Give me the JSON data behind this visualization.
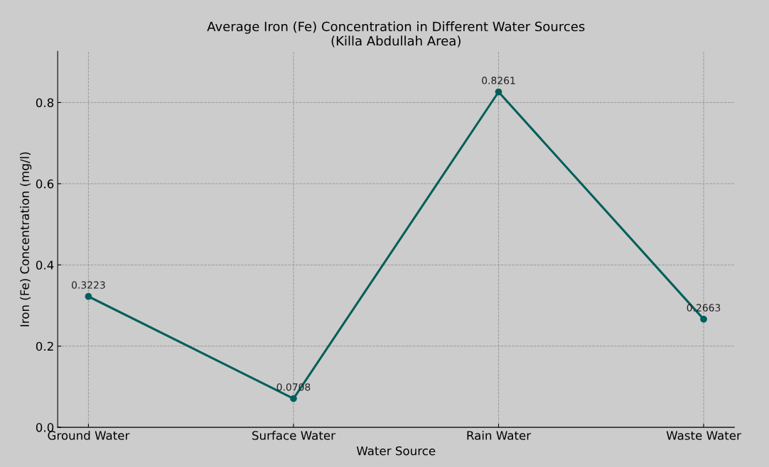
{
  "chart_data": {
    "type": "line",
    "title": "Average Iron (Fe) Concentration in Different Water Sources\n(Killa Abdullah Area)",
    "xlabel": "Water Source",
    "ylabel": "Iron (Fe) Concentration (mg/l)",
    "categories": [
      "Ground Water",
      "Surface Water",
      "Rain Water",
      "Waste Water"
    ],
    "series": [
      {
        "color": "#005f5a",
        "values": [
          0.3223,
          0.0708,
          0.8261,
          0.2663
        ]
      }
    ],
    "ylim": [
      0,
      0.926
    ],
    "yticks": [
      {
        "value": 0,
        "label": "0.0"
      },
      0.2,
      0.4,
      0.6,
      0.8
    ],
    "grid": true,
    "marker": "circle",
    "line_style": "solid",
    "data_labels": true
  }
}
